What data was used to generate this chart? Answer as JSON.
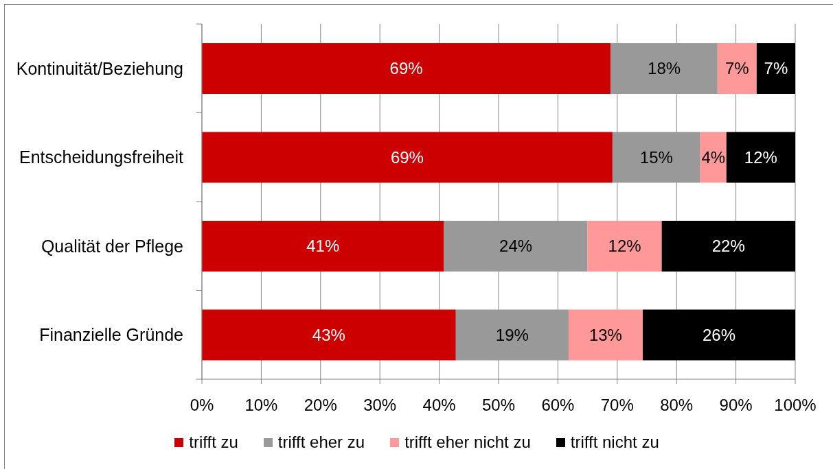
{
  "chart_data": {
    "type": "bar",
    "orientation": "horizontal",
    "stacked": true,
    "categories": [
      "Kontinuität/Beziehung",
      "Entscheidungsfreiheit",
      "Qualität der Pflege",
      "Finanzielle Gründe"
    ],
    "series": [
      {
        "name": "trifft zu",
        "color": "#cc0000",
        "values": [
          68.9,
          69.2,
          40.8,
          42.8
        ],
        "value_labels": [
          "69%",
          "69%",
          "41%",
          "43%"
        ]
      },
      {
        "name": "trifft eher zu",
        "color": "#999999",
        "values": [
          18.0,
          14.8,
          24.2,
          19.0
        ],
        "value_labels": [
          "18%",
          "15%",
          "24%",
          "19%"
        ]
      },
      {
        "name": "trifft eher nicht zu",
        "color": "#ff9999",
        "values": [
          6.6,
          4.4,
          12.5,
          12.5
        ],
        "value_labels": [
          "7%",
          "4%",
          "12%",
          "13%"
        ]
      },
      {
        "name": "trifft nicht zu",
        "color": "#000000",
        "values": [
          6.5,
          11.6,
          22.5,
          25.7
        ],
        "value_labels": [
          "7%",
          "12%",
          "22%",
          "26%"
        ]
      }
    ],
    "xlim": [
      0,
      100
    ],
    "xticks": [
      {
        "value": 0,
        "label": "0%"
      },
      {
        "value": 10,
        "label": "10%"
      },
      {
        "value": 20,
        "label": "20%"
      },
      {
        "value": 30,
        "label": "30%"
      },
      {
        "value": 40,
        "label": "40%"
      },
      {
        "value": 50,
        "label": "50%"
      },
      {
        "value": 60,
        "label": "60%"
      },
      {
        "value": 70,
        "label": "70%"
      },
      {
        "value": 80,
        "label": "80%"
      },
      {
        "value": 90,
        "label": "90%"
      },
      {
        "value": 100,
        "label": "100%"
      }
    ],
    "grid": "x",
    "legend": "bottom"
  }
}
